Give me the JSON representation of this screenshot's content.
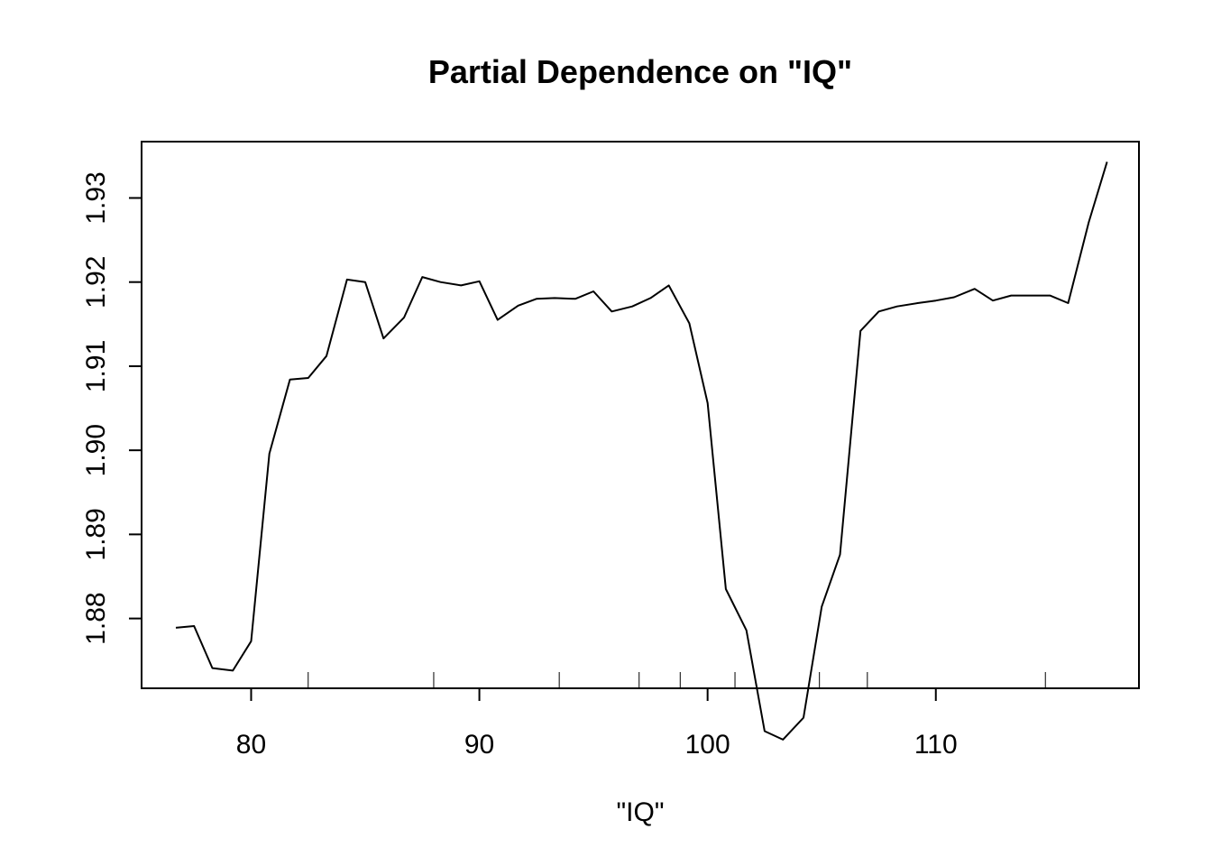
{
  "chart_data": {
    "type": "line",
    "title": "Partial Dependence on \"IQ\"",
    "xlabel": "\"IQ\"",
    "ylabel": "",
    "xlim": [
      75.2,
      118.9
    ],
    "ylim": [
      1.8717,
      1.9367
    ],
    "x_ticks": [
      80,
      90,
      100,
      110
    ],
    "x_tick_labels": [
      "80",
      "90",
      "100",
      "110"
    ],
    "y_ticks": [
      1.88,
      1.89,
      1.9,
      1.91,
      1.92,
      1.93
    ],
    "y_tick_labels": [
      "1.88",
      "1.89",
      "1.90",
      "1.91",
      "1.92",
      "1.93"
    ],
    "grid": false,
    "legend": "none",
    "rug_x": [
      82.5,
      88.0,
      93.5,
      97.0,
      98.8,
      101.2,
      104.9,
      107.0,
      114.8
    ],
    "series": [
      {
        "color": "#000000",
        "x": [
          76.7,
          77.5,
          78.3,
          79.2,
          80.0,
          80.8,
          81.7,
          82.5,
          83.3,
          84.2,
          85.0,
          85.8,
          86.7,
          87.5,
          88.3,
          89.2,
          90.0,
          90.8,
          91.7,
          92.5,
          93.3,
          94.2,
          95.0,
          95.8,
          96.7,
          97.5,
          98.3,
          99.2,
          100.0,
          100.8,
          101.7,
          102.5,
          103.3,
          104.2,
          105.0,
          105.8,
          106.7,
          107.5,
          108.3,
          109.2,
          110.0,
          110.8,
          111.7,
          112.5,
          113.3,
          114.2,
          115.0,
          115.8,
          116.7,
          117.5
        ],
        "values": [
          1.8789,
          1.8791,
          1.8741,
          1.8738,
          1.8773,
          1.8996,
          1.9084,
          1.9086,
          1.9112,
          1.9203,
          1.92,
          1.9133,
          1.9158,
          1.9206,
          1.92,
          1.9196,
          1.9201,
          1.9155,
          1.9172,
          1.918,
          1.9181,
          1.918,
          1.9189,
          1.9165,
          1.9171,
          1.9181,
          1.9196,
          1.9151,
          1.9056,
          1.8835,
          1.8786,
          1.8666,
          1.8656,
          1.8682,
          1.8814,
          1.8876,
          1.9142,
          1.9165,
          1.9171,
          1.9175,
          1.9178,
          1.9182,
          1.9192,
          1.9178,
          1.9184,
          1.9184,
          1.9184,
          1.9175,
          1.9271,
          1.9343
        ]
      }
    ]
  }
}
